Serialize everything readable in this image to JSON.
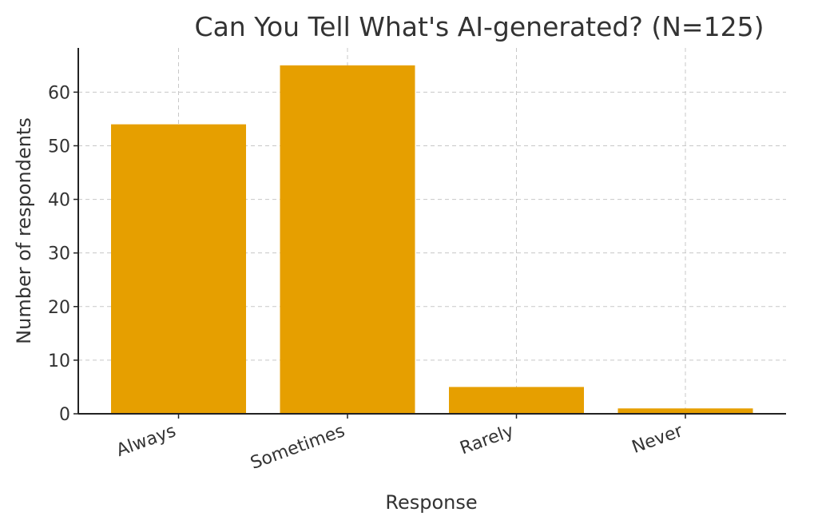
{
  "chart_data": {
    "type": "bar",
    "title": "Can You Tell What's AI-generated? (N=125)",
    "xlabel": "Response",
    "ylabel": "Number of respondents",
    "categories": [
      "Always",
      "Sometimes",
      "Rarely",
      "Never"
    ],
    "values": [
      54,
      65,
      5,
      1
    ],
    "ylim": [
      0,
      68.25
    ],
    "yticks": [
      0,
      10,
      20,
      30,
      40,
      50,
      60
    ],
    "grid": true,
    "bar_color": "#E69F00"
  }
}
